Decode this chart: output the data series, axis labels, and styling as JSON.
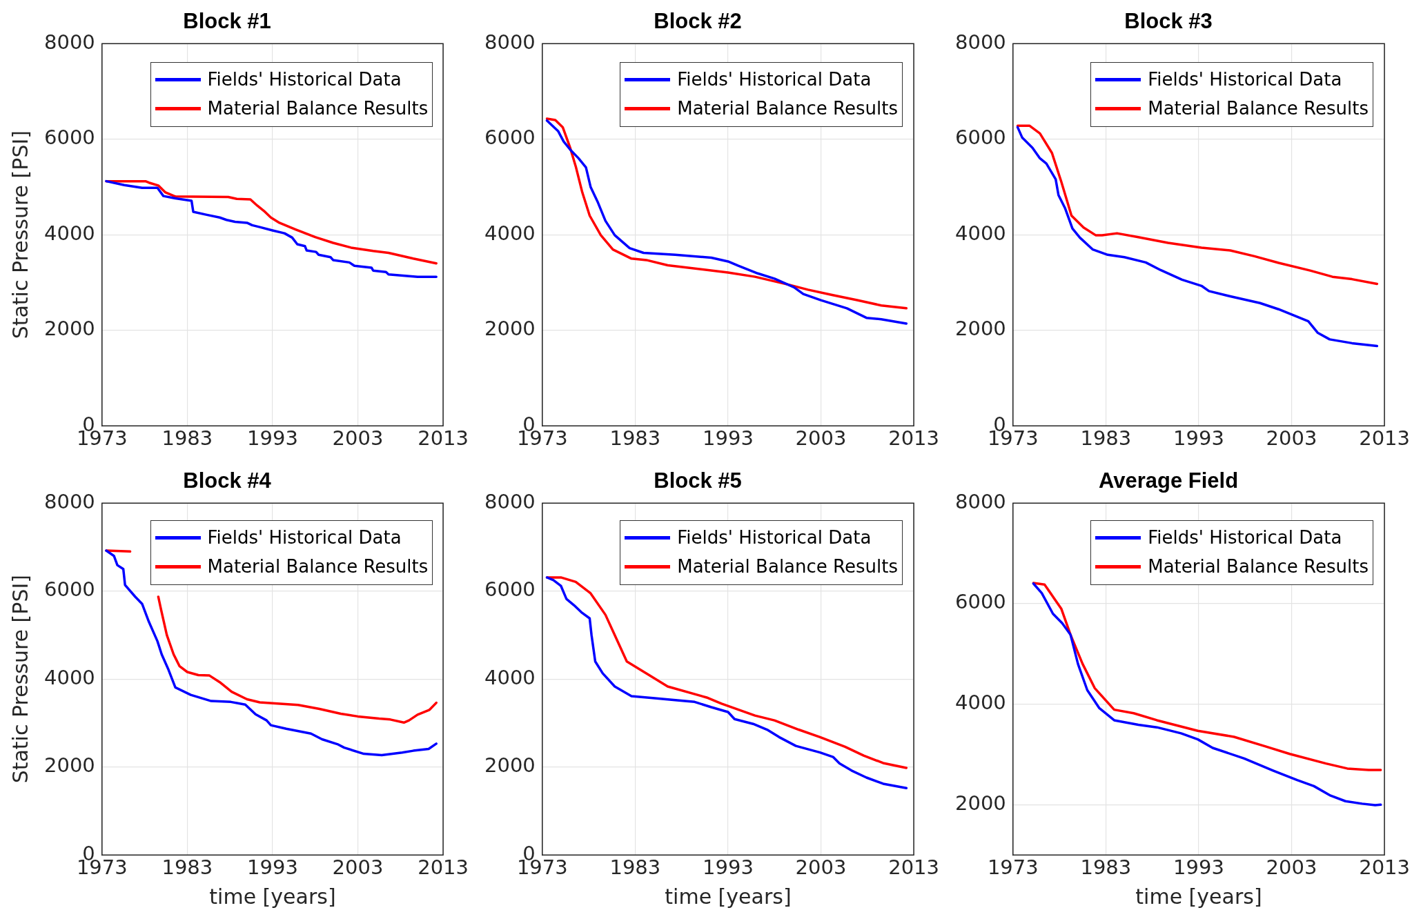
{
  "chart_data": [
    {
      "type": "line",
      "title": "Block #1",
      "ylabel": "Static Pressure [PSI]",
      "xlim": [
        1973,
        2013
      ],
      "xticks": [
        1973,
        1983,
        1993,
        2003,
        2013
      ],
      "ylim": [
        0,
        8000
      ],
      "yticks": [
        0,
        2000,
        4000,
        6000,
        8000
      ],
      "grid": true,
      "legend": "top right",
      "series": [
        {
          "name": "Fields' Historical Data",
          "color": "#0000ff",
          "x": [
            1973.5,
            1975.6,
            1977.7,
            1979.5,
            1980.2,
            1981.6,
            1983.5,
            1983.7,
            1985.2,
            1986.8,
            1987.6,
            1988.6,
            1990,
            1990.6,
            1991.5,
            1993,
            1994.4,
            1995.3,
            1995.9,
            1996.8,
            1997,
            1998.1,
            1998.4,
            1999.8,
            2000.1,
            2002,
            2002.6,
            2004.6,
            2004.8,
            2006.3,
            2006.6,
            2010,
            2012.2
          ],
          "values": [
            5120,
            5040,
            4980,
            4980,
            4810,
            4760,
            4710,
            4480,
            4420,
            4360,
            4310,
            4270,
            4250,
            4200,
            4160,
            4090,
            4030,
            3940,
            3800,
            3760,
            3670,
            3640,
            3580,
            3530,
            3470,
            3420,
            3350,
            3310,
            3250,
            3220,
            3170,
            3120,
            3120
          ]
        },
        {
          "name": "Material Balance Results",
          "color": "#ff0000",
          "x": [
            1973.5,
            1978.1,
            1978.5,
            1979.6,
            1980.4,
            1981.6,
            1987.8,
            1988.8,
            1990.4,
            1991.2,
            1992.1,
            1992.8,
            1993.8,
            1995.7,
            1998,
            2000.1,
            2002.2,
            2004.8,
            2006.6,
            2009.5,
            2012.2
          ],
          "values": [
            5120,
            5120,
            5090,
            5030,
            4890,
            4800,
            4790,
            4750,
            4740,
            4610,
            4480,
            4360,
            4250,
            4110,
            3950,
            3830,
            3730,
            3660,
            3620,
            3500,
            3400
          ]
        }
      ]
    },
    {
      "type": "line",
      "title": "Block #2",
      "xlim": [
        1973,
        2013
      ],
      "xticks": [
        1973,
        1983,
        1993,
        2003,
        2013
      ],
      "ylim": [
        0,
        8000
      ],
      "yticks": [
        0,
        2000,
        4000,
        6000,
        8000
      ],
      "grid": true,
      "legend": "top right",
      "series": [
        {
          "name": "Fields' Historical Data",
          "color": "#0000ff",
          "x": [
            1973.5,
            1974.7,
            1975.3,
            1976.1,
            1976.9,
            1977.7,
            1978.2,
            1979,
            1979.8,
            1980.8,
            1982.4,
            1983.9,
            1987.3,
            1991.2,
            1993,
            1994.1,
            1996.2,
            1998,
            2000.1,
            2001.1,
            2003,
            2005.8,
            2007.9,
            2009.5,
            2012.2
          ],
          "values": [
            6390,
            6170,
            5950,
            5760,
            5600,
            5410,
            5000,
            4670,
            4290,
            3990,
            3720,
            3620,
            3580,
            3520,
            3440,
            3350,
            3190,
            3080,
            2900,
            2760,
            2630,
            2460,
            2260,
            2230,
            2140
          ]
        },
        {
          "name": "Material Balance Results",
          "color": "#ff0000",
          "x": [
            1973.5,
            1974.4,
            1975.2,
            1976,
            1976.6,
            1977.3,
            1978.1,
            1979.3,
            1980.6,
            1982.6,
            1984.2,
            1986.5,
            1993,
            1995.9,
            1999.6,
            2001.6,
            2004.2,
            2006.9,
            2009.5,
            2012.2
          ],
          "values": [
            6430,
            6400,
            6250,
            5820,
            5430,
            4890,
            4400,
            3990,
            3690,
            3500,
            3470,
            3360,
            3210,
            3120,
            2950,
            2850,
            2740,
            2630,
            2520,
            2460
          ]
        }
      ]
    },
    {
      "type": "line",
      "title": "Block #3",
      "xlim": [
        1973,
        2013
      ],
      "xticks": [
        1973,
        1983,
        1993,
        2003,
        2013
      ],
      "ylim": [
        0,
        8000
      ],
      "yticks": [
        0,
        2000,
        4000,
        6000,
        8000
      ],
      "grid": true,
      "legend": "top right",
      "series": [
        {
          "name": "Fields' Historical Data",
          "color": "#0000ff",
          "x": [
            1973.5,
            1974,
            1975.1,
            1975.9,
            1976.6,
            1977.6,
            1977.9,
            1978.6,
            1979.4,
            1980.2,
            1981.6,
            1983.2,
            1985,
            1987.3,
            1988.9,
            1991.2,
            1993.3,
            1994.1,
            1996.4,
            1999.6,
            2001.6,
            2004.8,
            2005.8,
            2007.1,
            2009.5,
            2012.2
          ],
          "values": [
            6250,
            6030,
            5820,
            5600,
            5490,
            5160,
            4830,
            4560,
            4130,
            3940,
            3690,
            3580,
            3530,
            3420,
            3260,
            3060,
            2930,
            2820,
            2710,
            2570,
            2440,
            2190,
            1950,
            1810,
            1730,
            1670
          ]
        },
        {
          "name": "Material Balance Results",
          "color": "#ff0000",
          "x": [
            1973.5,
            1974.8,
            1975.9,
            1977.2,
            1978.2,
            1979.3,
            1980.6,
            1981.9,
            1982.6,
            1984.2,
            1986.5,
            1989.7,
            1993.3,
            1996.4,
            1999,
            2001.6,
            2005,
            2007.4,
            2009.5,
            2012.2
          ],
          "values": [
            6280,
            6280,
            6120,
            5710,
            5110,
            4400,
            4150,
            3990,
            3990,
            4030,
            3950,
            3830,
            3730,
            3670,
            3550,
            3410,
            3250,
            3120,
            3070,
            2970
          ]
        }
      ]
    },
    {
      "type": "line",
      "title": "Block #4",
      "xlabel": "time [years]",
      "ylabel": "Static Pressure [PSI]",
      "xlim": [
        1973,
        2013
      ],
      "xticks": [
        1973,
        1983,
        1993,
        2003,
        2013
      ],
      "ylim": [
        0,
        8000
      ],
      "yticks": [
        0,
        2000,
        4000,
        6000,
        8000
      ],
      "grid": true,
      "legend": "top right",
      "series": [
        {
          "name": "Fields' Historical Data",
          "color": "#0000ff",
          "x": [
            1973.5,
            1974.4,
            1974.8,
            1975.5,
            1975.7,
            1976.9,
            1977.7,
            1978.5,
            1979.5,
            1980,
            1980.8,
            1981.6,
            1983.4,
            1985.8,
            1988.1,
            1989.8,
            1991,
            1992.3,
            1992.8,
            1994.6,
            1997.5,
            1998.8,
            2000.6,
            2001.4,
            2003.7,
            2005.8,
            2008.2,
            2009.5,
            2011.3,
            2012.2
          ],
          "values": [
            6920,
            6800,
            6590,
            6500,
            6140,
            5870,
            5710,
            5300,
            4860,
            4560,
            4210,
            3810,
            3640,
            3500,
            3480,
            3420,
            3200,
            3060,
            2950,
            2870,
            2760,
            2630,
            2520,
            2440,
            2300,
            2270,
            2330,
            2370,
            2410,
            2530
          ]
        },
        {
          "name": "Material Balance Results",
          "color": "#ff0000",
          "x": [
            1973.5,
            1976.3,
            1977.8,
            1979.6,
            1979.9,
            1980.6,
            1981.4,
            1982.1,
            1983,
            1984.3,
            1985.6,
            1986.8,
            1988.2,
            1990,
            1991.5,
            1993,
            1996,
            1998.5,
            2001,
            2003,
            2005.5,
            2006.8,
            2008.4,
            2009,
            2010,
            2011.4,
            2012.2
          ],
          "values": [
            6920,
            6900,
            null,
            5870,
            5600,
            5000,
            4560,
            4290,
            4160,
            4090,
            4080,
            3930,
            3710,
            3540,
            3470,
            3450,
            3410,
            3320,
            3210,
            3150,
            3100,
            3080,
            3010,
            3060,
            3190,
            3300,
            3460
          ]
        }
      ]
    },
    {
      "type": "line",
      "title": "Block #5",
      "xlabel": "time [years]",
      "xlim": [
        1973,
        2013
      ],
      "xticks": [
        1973,
        1983,
        1993,
        2003,
        2013
      ],
      "ylim": [
        0,
        8000
      ],
      "yticks": [
        0,
        2000,
        4000,
        6000,
        8000
      ],
      "grid": true,
      "legend": "top right",
      "series": [
        {
          "name": "Fields' Historical Data",
          "color": "#0000ff",
          "x": [
            1973.5,
            1974.2,
            1975,
            1975.6,
            1976.4,
            1977.2,
            1978.1,
            1978.3,
            1978.7,
            1979.5,
            1980.8,
            1982.6,
            1984.7,
            1989.4,
            1991.2,
            1993,
            1993.7,
            1995.7,
            1997.2,
            1998.5,
            2000.3,
            2002.9,
            2004.3,
            2005,
            2006.3,
            2007.9,
            2009.7,
            2012.2
          ],
          "values": [
            6310,
            6250,
            6120,
            5820,
            5680,
            5520,
            5380,
            5000,
            4400,
            4130,
            3830,
            3610,
            3570,
            3480,
            3360,
            3250,
            3090,
            2980,
            2850,
            2680,
            2480,
            2330,
            2230,
            2080,
            1920,
            1760,
            1620,
            1520
          ]
        },
        {
          "name": "Material Balance Results",
          "color": "#ff0000",
          "x": [
            1973.5,
            1975,
            1976.6,
            1978.2,
            1979.8,
            1980.8,
            1982.1,
            1984.2,
            1986.5,
            1990.7,
            1992.3,
            1995.9,
            1998,
            2000.6,
            2002.9,
            2005.6,
            2007.6,
            2009.7,
            2012.2
          ],
          "values": [
            6310,
            6310,
            6210,
            5950,
            5460,
            5000,
            4400,
            4130,
            3830,
            3580,
            3440,
            3170,
            3060,
            2850,
            2680,
            2460,
            2260,
            2090,
            1980
          ]
        }
      ]
    },
    {
      "type": "line",
      "title": "Average Field",
      "xlabel": "time [years]",
      "xlim": [
        1973,
        2013
      ],
      "xticks": [
        1973,
        1983,
        1993,
        2003,
        2013
      ],
      "ylim": [
        1000,
        8000
      ],
      "yticks": [
        2000,
        4000,
        6000,
        8000
      ],
      "grid": true,
      "legend": "top right",
      "series": [
        {
          "name": "Fields' Historical Data",
          "color": "#0000ff",
          "x": [
            1975.2,
            1976.1,
            1977.3,
            1978.3,
            1979.2,
            1980,
            1981,
            1982.3,
            1983.9,
            1986.5,
            1988.5,
            1991.1,
            1992.9,
            1994.5,
            1997.9,
            2001,
            2003.6,
            2005.4,
            2007.2,
            2008.8,
            2010.6,
            2012,
            2012.6
          ],
          "values": [
            6400,
            6210,
            5800,
            5610,
            5380,
            4800,
            4280,
            3920,
            3680,
            3590,
            3540,
            3420,
            3300,
            3130,
            2920,
            2680,
            2490,
            2370,
            2180,
            2070,
            2020,
            1990,
            2000
          ]
        },
        {
          "name": "Material Balance Results",
          "color": "#ff0000",
          "x": [
            1975.2,
            1976.4,
            1978.2,
            1979.2,
            1980.5,
            1981.8,
            1983.9,
            1986,
            1988.5,
            1992.9,
            1996.8,
            2000.2,
            2002.8,
            2006.7,
            2009,
            2011.3,
            2012.6
          ],
          "values": [
            6410,
            6380,
            5900,
            5380,
            4800,
            4320,
            3890,
            3820,
            3680,
            3470,
            3350,
            3160,
            3010,
            2820,
            2720,
            2690,
            2690
          ]
        }
      ]
    }
  ]
}
